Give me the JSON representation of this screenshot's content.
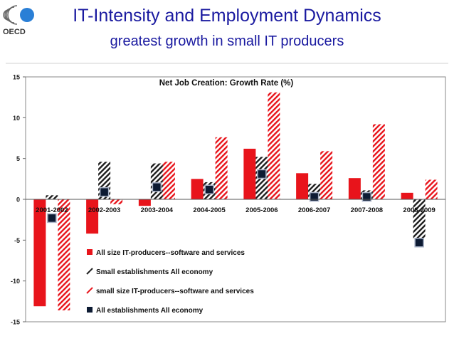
{
  "slide": {
    "title": "IT-Intensity and Employment Dynamics",
    "subtitle": "greatest growth in small IT producers",
    "logo_text": "OECD"
  },
  "colors": {
    "title": "#1a1aa0",
    "red": "#e8141b",
    "black": "#1c1c1c",
    "navy": "#0d1b33",
    "logo_blue": "#2a7fd6"
  },
  "chart_data": {
    "type": "bar",
    "title": "Net Job Creation:  Growth Rate (%)",
    "categories": [
      "2001-2002",
      "2002-2003",
      "2003-2004",
      "2004-2005",
      "2005-2006",
      "2006-2007",
      "2007-2008",
      "2008-2009"
    ],
    "ylim": [
      -15,
      15
    ],
    "yticks": [
      -15,
      -10,
      -5,
      0,
      5,
      10,
      15
    ],
    "series": [
      {
        "name": "All size IT-producers--software and services",
        "style": "solid-red",
        "values": [
          -13.1,
          -4.2,
          -0.8,
          2.5,
          6.2,
          3.2,
          2.6,
          0.8
        ]
      },
      {
        "name": "Small establishments All economy",
        "style": "hatched-black",
        "values": [
          0.5,
          4.6,
          4.4,
          2.1,
          5.2,
          1.9,
          1.1,
          -4.8
        ]
      },
      {
        "name": "small size IT-producers--software and services",
        "style": "hatched-red",
        "values": [
          -13.6,
          -0.6,
          4.6,
          7.6,
          13.1,
          5.9,
          9.2,
          2.4
        ]
      },
      {
        "name": "All establishments All economy",
        "style": "marker-navy",
        "values": [
          -2.3,
          0.9,
          1.5,
          1.2,
          3.1,
          0.3,
          0.3,
          -5.3
        ]
      }
    ]
  }
}
